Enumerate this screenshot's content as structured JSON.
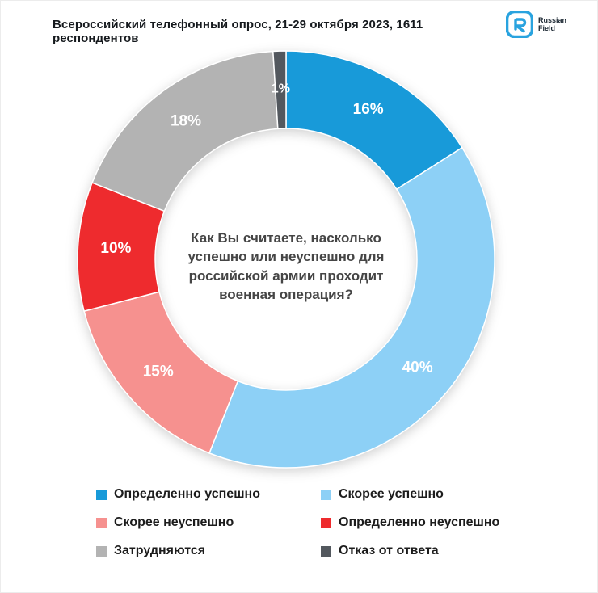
{
  "header": {
    "logo": {
      "line1": "Russian",
      "line2": "Field"
    }
  },
  "chart_data": {
    "type": "pie",
    "donut": true,
    "title": "Всероссийский телефонный опрос, 21-29 октября 2023, 1611 респондентов",
    "center_question": "Как Вы считаете, насколько успешно или неуспешно для российской армии проходит военная операция?",
    "start_angle_deg": 0,
    "direction": "clockwise",
    "legend_position": "bottom",
    "slices": [
      {
        "label": "Определенно успешно",
        "value": 16,
        "display": "16%",
        "color": "#189ad9"
      },
      {
        "label": "Скорее успешно",
        "value": 40,
        "display": "40%",
        "color": "#8dd0f6"
      },
      {
        "label": "Скорее неуспешно",
        "value": 15,
        "display": "15%",
        "color": "#f6918f"
      },
      {
        "label": "Определенно неуспешно",
        "value": 10,
        "display": "10%",
        "color": "#ee2b2e"
      },
      {
        "label": "Затрудняются",
        "value": 18,
        "display": "18%",
        "color": "#b3b3b3"
      },
      {
        "label": "Отказ от ответа",
        "value": 1,
        "display": "1%",
        "color": "#53585e"
      }
    ]
  }
}
